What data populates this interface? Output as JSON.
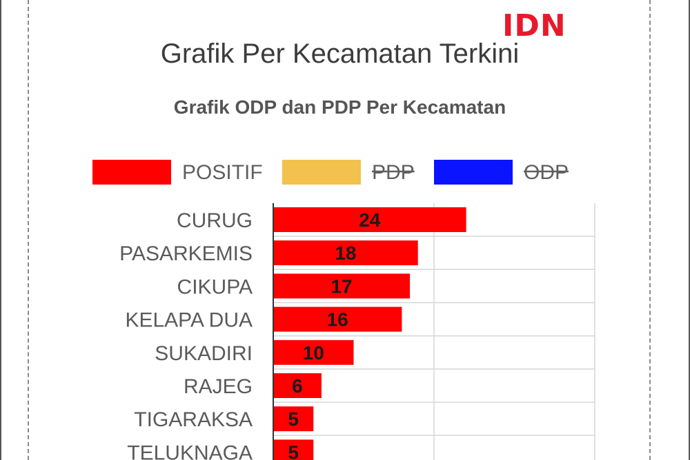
{
  "brand": {
    "logo_text": "IDN",
    "logo_color": "#e8192c"
  },
  "page": {
    "title": "Grafik Per Kecamatan Terkini"
  },
  "chart_data": {
    "type": "bar",
    "orientation": "horizontal",
    "title": "Grafik ODP dan PDP Per Kecamatan",
    "xlabel": "",
    "ylabel": "",
    "xlim": [
      0,
      40
    ],
    "grid": true,
    "legend_position": "top",
    "legend": [
      {
        "name": "POSITIF",
        "color": "#ff0000",
        "hidden": false
      },
      {
        "name": "PDP",
        "color": "#f2c14e",
        "hidden": true
      },
      {
        "name": "ODP",
        "color": "#0a14ff",
        "hidden": true
      }
    ],
    "categories": [
      "CURUG",
      "PASARKEMIS",
      "CIKUPA",
      "KELAPA DUA",
      "SUKADIRI",
      "RAJEG",
      "TIGARAKSA",
      "TELUKNAGA"
    ],
    "series": [
      {
        "name": "POSITIF",
        "color": "#ff0000",
        "values": [
          24,
          18,
          17,
          16,
          10,
          6,
          5,
          5
        ]
      }
    ]
  }
}
